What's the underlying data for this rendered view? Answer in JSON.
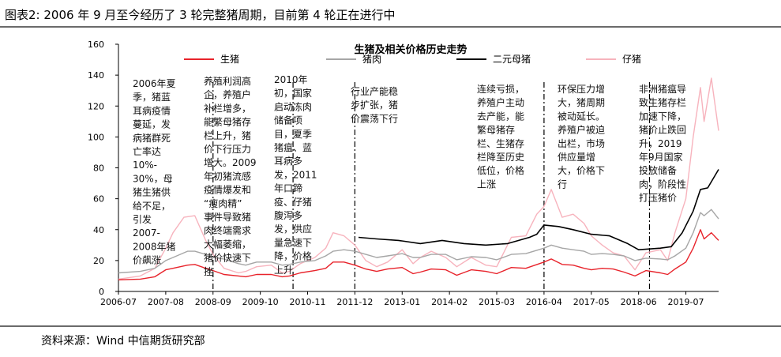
{
  "figure_title": "图表2: 2006 年 9 月至今经历了 3 轮完整猪周期，目前第 4 轮正在进行中",
  "source_note": "资料来源：Wind 中信期货研究部",
  "colors": {
    "live_hog": "#e8232b",
    "pork": "#a6a6a6",
    "sow": "#000000",
    "piglet": "#f7b3bd",
    "rule": "#6b6b6b"
  },
  "chart_data": {
    "type": "line",
    "title": "生猪及相关价格历史走势",
    "xlabel": "",
    "ylabel": "",
    "ylim": [
      0,
      160
    ],
    "yticks": [
      0,
      20,
      40,
      60,
      80,
      100,
      120,
      140,
      160
    ],
    "xrange": [
      "2006-07",
      "2020-04"
    ],
    "xticks": [
      "2006-07",
      "2007-08",
      "2008-09",
      "2009-10",
      "2010-11",
      "2011-12",
      "2013-01",
      "2014-02",
      "2015-03",
      "2016-04",
      "2017-05",
      "2018-06",
      "2019-07"
    ],
    "grid": false,
    "legend": "top",
    "series": [
      {
        "name": "生猪",
        "color_key": "live_hog",
        "points": [
          [
            "2006-07",
            7.5
          ],
          [
            "2007-01",
            8
          ],
          [
            "2007-05",
            9.5
          ],
          [
            "2007-08",
            14
          ],
          [
            "2007-10",
            15
          ],
          [
            "2008-02",
            17
          ],
          [
            "2008-04",
            17.5
          ],
          [
            "2008-07",
            15
          ],
          [
            "2008-09",
            13.5
          ],
          [
            "2008-12",
            11
          ],
          [
            "2009-04",
            10
          ],
          [
            "2009-06",
            9.5
          ],
          [
            "2009-09",
            11
          ],
          [
            "2010-01",
            11
          ],
          [
            "2010-04",
            9.5
          ],
          [
            "2010-06",
            10
          ],
          [
            "2010-09",
            12
          ],
          [
            "2011-01",
            13.5
          ],
          [
            "2011-04",
            15
          ],
          [
            "2011-06",
            19
          ],
          [
            "2011-09",
            19
          ],
          [
            "2011-12",
            17
          ],
          [
            "2012-03",
            14.5
          ],
          [
            "2012-06",
            13
          ],
          [
            "2012-09",
            14.5
          ],
          [
            "2013-01",
            15.5
          ],
          [
            "2013-04",
            11.5
          ],
          [
            "2013-06",
            12.5
          ],
          [
            "2013-09",
            14.5
          ],
          [
            "2014-01",
            14
          ],
          [
            "2014-04",
            10.5
          ],
          [
            "2014-08",
            14
          ],
          [
            "2014-12",
            13
          ],
          [
            "2015-03",
            11.5
          ],
          [
            "2015-07",
            15.5
          ],
          [
            "2015-11",
            15
          ],
          [
            "2016-04",
            19
          ],
          [
            "2016-06",
            21
          ],
          [
            "2016-09",
            17.5
          ],
          [
            "2016-12",
            17
          ],
          [
            "2017-03",
            15
          ],
          [
            "2017-05",
            14
          ],
          [
            "2017-08",
            15
          ],
          [
            "2017-11",
            14.5
          ],
          [
            "2018-02",
            12.5
          ],
          [
            "2018-05",
            10
          ],
          [
            "2018-08",
            13.5
          ],
          [
            "2018-12",
            12
          ],
          [
            "2019-02",
            11
          ],
          [
            "2019-04",
            14.5
          ],
          [
            "2019-07",
            19
          ],
          [
            "2019-09",
            28
          ],
          [
            "2019-11",
            40
          ],
          [
            "2019-12",
            34
          ],
          [
            "2020-02",
            38
          ],
          [
            "2020-04",
            33
          ]
        ]
      },
      {
        "name": "猪肉",
        "color_key": "pork",
        "points": [
          [
            "2006-07",
            12
          ],
          [
            "2007-01",
            13
          ],
          [
            "2007-05",
            15
          ],
          [
            "2007-08",
            20
          ],
          [
            "2007-10",
            22
          ],
          [
            "2008-02",
            26
          ],
          [
            "2008-04",
            26
          ],
          [
            "2008-07",
            24
          ],
          [
            "2008-09",
            22
          ],
          [
            "2008-12",
            21
          ],
          [
            "2009-04",
            18
          ],
          [
            "2009-06",
            17
          ],
          [
            "2009-09",
            19
          ],
          [
            "2010-01",
            19
          ],
          [
            "2010-04",
            17
          ],
          [
            "2010-06",
            17.5
          ],
          [
            "2010-09",
            19
          ],
          [
            "2011-01",
            20
          ],
          [
            "2011-04",
            23
          ],
          [
            "2011-06",
            26
          ],
          [
            "2011-09",
            27
          ],
          [
            "2011-12",
            26
          ],
          [
            "2012-03",
            24
          ],
          [
            "2012-06",
            22
          ],
          [
            "2012-09",
            23
          ],
          [
            "2013-01",
            24.5
          ],
          [
            "2013-04",
            22
          ],
          [
            "2013-06",
            22
          ],
          [
            "2013-09",
            24
          ],
          [
            "2014-01",
            24
          ],
          [
            "2014-04",
            20.5
          ],
          [
            "2014-08",
            22.5
          ],
          [
            "2014-12",
            22
          ],
          [
            "2015-03",
            20.5
          ],
          [
            "2015-07",
            24
          ],
          [
            "2015-11",
            24.5
          ],
          [
            "2016-04",
            28
          ],
          [
            "2016-06",
            30
          ],
          [
            "2016-09",
            28
          ],
          [
            "2016-12",
            27
          ],
          [
            "2017-03",
            26
          ],
          [
            "2017-05",
            24
          ],
          [
            "2017-08",
            24.5
          ],
          [
            "2017-11",
            24
          ],
          [
            "2018-02",
            23
          ],
          [
            "2018-05",
            20
          ],
          [
            "2018-08",
            21.5
          ],
          [
            "2018-12",
            21
          ],
          [
            "2019-02",
            20.5
          ],
          [
            "2019-04",
            23
          ],
          [
            "2019-07",
            28
          ],
          [
            "2019-09",
            38
          ],
          [
            "2019-11",
            51
          ],
          [
            "2019-12",
            49
          ],
          [
            "2020-02",
            53
          ],
          [
            "2020-04",
            47
          ]
        ]
      },
      {
        "name": "二元母猪",
        "color_key": "sow",
        "points": [
          [
            "2012-01",
            35
          ],
          [
            "2012-06",
            34
          ],
          [
            "2012-12",
            33
          ],
          [
            "2013-06",
            31
          ],
          [
            "2013-12",
            33
          ],
          [
            "2014-06",
            31
          ],
          [
            "2014-12",
            30
          ],
          [
            "2015-06",
            31
          ],
          [
            "2015-12",
            35
          ],
          [
            "2016-02",
            37
          ],
          [
            "2016-04",
            43
          ],
          [
            "2016-08",
            42
          ],
          [
            "2016-12",
            40
          ],
          [
            "2017-05",
            37
          ],
          [
            "2017-10",
            36
          ],
          [
            "2018-03",
            31
          ],
          [
            "2018-06",
            27
          ],
          [
            "2018-12",
            28
          ],
          [
            "2019-03",
            29
          ],
          [
            "2019-06",
            38
          ],
          [
            "2019-09",
            52
          ],
          [
            "2019-11",
            66
          ],
          [
            "2020-01",
            67
          ],
          [
            "2020-04",
            79
          ]
        ]
      },
      {
        "name": "仔猪",
        "color_key": "piglet",
        "points": [
          [
            "2006-07",
            8
          ],
          [
            "2007-01",
            10
          ],
          [
            "2007-05",
            15
          ],
          [
            "2007-08",
            28
          ],
          [
            "2007-10",
            38
          ],
          [
            "2008-01",
            48
          ],
          [
            "2008-04",
            49
          ],
          [
            "2008-07",
            33
          ],
          [
            "2008-09",
            24
          ],
          [
            "2008-12",
            15
          ],
          [
            "2009-04",
            12
          ],
          [
            "2009-06",
            13
          ],
          [
            "2009-09",
            16
          ],
          [
            "2010-01",
            17
          ],
          [
            "2010-04",
            12
          ],
          [
            "2010-06",
            13
          ],
          [
            "2010-09",
            18
          ],
          [
            "2011-01",
            22
          ],
          [
            "2011-04",
            28
          ],
          [
            "2011-06",
            38
          ],
          [
            "2011-09",
            36
          ],
          [
            "2011-12",
            30
          ],
          [
            "2012-03",
            20
          ],
          [
            "2012-06",
            16
          ],
          [
            "2012-09",
            19
          ],
          [
            "2013-01",
            27
          ],
          [
            "2013-04",
            18
          ],
          [
            "2013-06",
            22
          ],
          [
            "2013-09",
            26
          ],
          [
            "2014-01",
            22
          ],
          [
            "2014-04",
            16
          ],
          [
            "2014-08",
            22
          ],
          [
            "2014-12",
            17
          ],
          [
            "2015-03",
            16
          ],
          [
            "2015-07",
            35
          ],
          [
            "2015-11",
            36
          ],
          [
            "2016-02",
            50
          ],
          [
            "2016-04",
            55
          ],
          [
            "2016-06",
            66
          ],
          [
            "2016-09",
            48
          ],
          [
            "2016-12",
            50
          ],
          [
            "2017-03",
            44
          ],
          [
            "2017-05",
            36
          ],
          [
            "2017-08",
            30
          ],
          [
            "2017-11",
            25
          ],
          [
            "2018-02",
            23
          ],
          [
            "2018-05",
            14
          ],
          [
            "2018-08",
            25
          ],
          [
            "2018-12",
            27
          ],
          [
            "2019-02",
            20
          ],
          [
            "2019-04",
            38
          ],
          [
            "2019-07",
            60
          ],
          [
            "2019-09",
            100
          ],
          [
            "2019-11",
            132
          ],
          [
            "2019-12",
            110
          ],
          [
            "2020-02",
            138
          ],
          [
            "2020-04",
            104
          ]
        ]
      }
    ],
    "dividers": [
      "2008-09",
      "2010-07",
      "2011-12",
      "2016-04",
      "2018-09"
    ],
    "annotations": [
      {
        "lines": [
          "2006年夏",
          "季，猪蓝",
          "耳病疫情",
          "蔓延，发",
          "病猪群死",
          "亡率达",
          "10%-",
          "30%，母",
          "猪生猪供",
          "给不足，",
          "引发",
          "2007-",
          "2008年猪",
          "价飙涨"
        ]
      },
      {
        "lines": [
          "养殖利润高",
          "企，养殖户",
          "补栏增多，",
          "能繁母猪存",
          "栏上升，猪",
          "价下行压力",
          "增大。2009",
          "年初猪流感",
          "疫情爆发和",
          "“瘦肉精”",
          "事件导致猪",
          "肉终端需求",
          "大幅萎缩，",
          "猪价快速下",
          "挫"
        ]
      },
      {
        "lines": [
          "2010年",
          "初，国家",
          "启动冻肉",
          "储备项",
          "目，夏季",
          "猪瘟、蓝",
          "耳病多",
          "发，2011",
          "年口蹄",
          "疫、仔猪",
          "腹泻多",
          "发，供应",
          "量急速下",
          "降，价格",
          "上升"
        ]
      },
      {
        "lines": [
          "行业产能稳",
          "步扩张，猪",
          "价震荡下行"
        ]
      },
      {
        "lines": [
          "连续亏损，",
          "养殖户主动",
          "去产能，能",
          "繁母猪存",
          "栏、生猪存",
          "栏降至历史",
          "低位，价格",
          "上涨"
        ]
      },
      {
        "lines": [
          "环保压力增",
          "大，猪周期",
          "被动延长。",
          "养殖户被迫",
          "出栏，市场",
          "供应量增",
          "大，价格下",
          "行"
        ]
      },
      {
        "lines": [
          "非洲猪瘟导",
          "致生猪存栏",
          "加速下降，",
          "猪价止跌回",
          "升，2019",
          "年9月国家",
          "投放储备",
          "肉，阶段性",
          "打压猪价"
        ]
      }
    ]
  }
}
